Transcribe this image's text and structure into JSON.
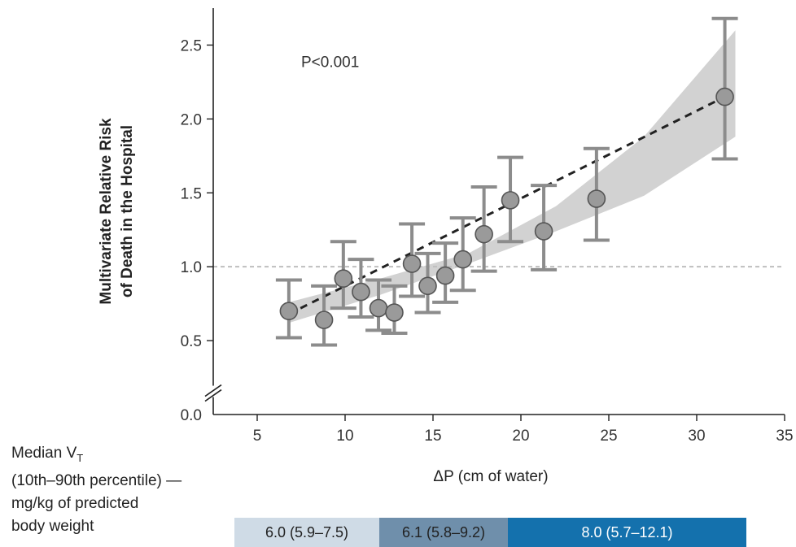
{
  "chart_data": {
    "type": "scatter",
    "title": "",
    "xlabel": "ΔP (cm of water)",
    "ylabel": "Multivariate Relative Risk of Death in the Hospital",
    "ylabel_lines": [
      "Multivariate Relative Risk",
      "of Death in the Hospital"
    ],
    "xlim": [
      2.5,
      35
    ],
    "ylim": [
      0,
      2.75
    ],
    "x_ticks": [
      5,
      10,
      15,
      20,
      25,
      30,
      35
    ],
    "y_ticks": [
      0.5,
      1.0,
      1.5,
      2.0,
      2.5
    ],
    "y_tick_labels": [
      "0.5",
      "1.0",
      "1.5",
      "2.0",
      "2.5"
    ],
    "y_zero_label": "0.0",
    "axis_break": true,
    "reference_line": 1.0,
    "grid": false,
    "annotation": "P<0.001",
    "points": [
      {
        "x": 6.8,
        "y": 0.7,
        "low": 0.52,
        "high": 0.91
      },
      {
        "x": 8.8,
        "y": 0.64,
        "low": 0.47,
        "high": 0.87
      },
      {
        "x": 9.9,
        "y": 0.92,
        "low": 0.72,
        "high": 1.17
      },
      {
        "x": 10.9,
        "y": 0.83,
        "low": 0.66,
        "high": 1.05
      },
      {
        "x": 11.9,
        "y": 0.72,
        "low": 0.57,
        "high": 0.91
      },
      {
        "x": 12.8,
        "y": 0.69,
        "low": 0.55,
        "high": 0.87
      },
      {
        "x": 13.8,
        "y": 1.02,
        "low": 0.8,
        "high": 1.29
      },
      {
        "x": 14.7,
        "y": 0.87,
        "low": 0.69,
        "high": 1.09
      },
      {
        "x": 15.7,
        "y": 0.94,
        "low": 0.76,
        "high": 1.16
      },
      {
        "x": 16.7,
        "y": 1.05,
        "low": 0.84,
        "high": 1.33
      },
      {
        "x": 17.9,
        "y": 1.22,
        "low": 0.97,
        "high": 1.54
      },
      {
        "x": 19.4,
        "y": 1.45,
        "low": 1.17,
        "high": 1.74
      },
      {
        "x": 21.3,
        "y": 1.24,
        "low": 0.98,
        "high": 1.55
      },
      {
        "x": 24.3,
        "y": 1.46,
        "low": 1.18,
        "high": 1.8
      },
      {
        "x": 31.6,
        "y": 2.15,
        "low": 1.73,
        "high": 2.68
      }
    ],
    "fit_line": [
      {
        "x": 6.8,
        "y": 0.68
      },
      {
        "x": 31.6,
        "y": 2.15
      }
    ],
    "confidence_band": [
      {
        "x": 6.8,
        "low": 0.62,
        "high": 0.76
      },
      {
        "x": 12.0,
        "low": 0.81,
        "high": 0.92
      },
      {
        "x": 17.0,
        "low": 1.02,
        "high": 1.09
      },
      {
        "x": 22.0,
        "low": 1.24,
        "high": 1.41
      },
      {
        "x": 27.0,
        "low": 1.48,
        "high": 1.88
      },
      {
        "x": 32.2,
        "low": 1.88,
        "high": 2.6
      }
    ],
    "colors": {
      "point_fill": "#9a9a9a",
      "error_bar": "#8c8c8c",
      "band": "#d2d2d2",
      "fit_line": "#222222",
      "reference_line": "#bfbfbf"
    }
  },
  "vt_legend": {
    "lines": [
      "Median V",
      "(10th–90th percentile) —",
      "mg/kg of predicted",
      "body weight"
    ],
    "subscript": "T",
    "bands": [
      {
        "label": "6.0 (5.9–7.5)",
        "color": "#cfdbe6"
      },
      {
        "label": "6.1 (5.8–9.2)",
        "color": "#6f8fab"
      },
      {
        "label": "8.0 (5.7–12.1)",
        "color": "#1471ad"
      }
    ]
  }
}
